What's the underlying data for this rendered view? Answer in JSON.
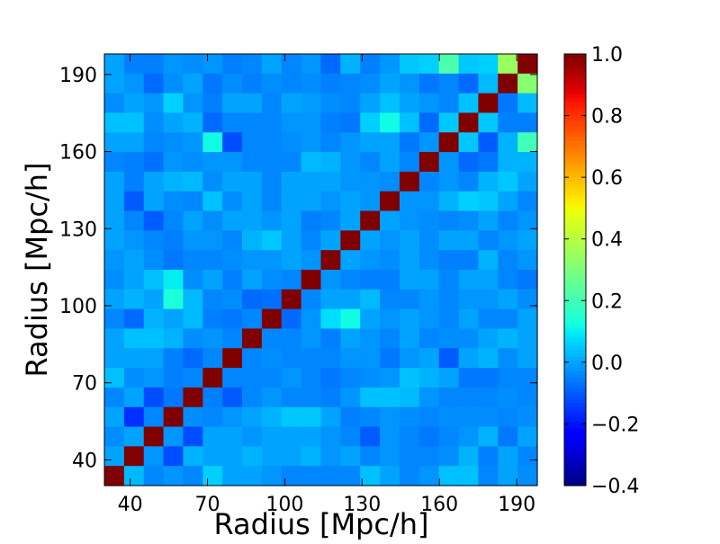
{
  "chart_data": {
    "type": "heatmap",
    "title": "",
    "xlabel": "Radius [Mpc/h]",
    "ylabel": "Radius [Mpc/h]",
    "axis_min": 30,
    "axis_max": 198,
    "bin_width": 8,
    "x_ticks": [
      40,
      70,
      100,
      130,
      160,
      190
    ],
    "y_ticks": [
      40,
      70,
      100,
      130,
      160,
      190
    ],
    "x_tick_labels": [
      "40",
      "70",
      "100",
      "130",
      "160",
      "190"
    ],
    "y_tick_labels": [
      "40",
      "70",
      "100",
      "130",
      "160",
      "190"
    ],
    "colorbar": {
      "min": -0.4,
      "max": 1.0,
      "ticks": [
        1.0,
        0.8,
        0.6,
        0.4,
        0.2,
        0.0,
        -0.2,
        -0.4
      ],
      "tick_labels": [
        "1.0",
        "0.8",
        "0.6",
        "0.4",
        "0.2",
        "0.0",
        "−0.2",
        "−0.4"
      ],
      "colormap": "jet"
    },
    "matrix_order": "rows listed from top (r=194) to bottom (r=34); columns from left (r=34) to right (r=194)",
    "matrix": [
      [
        0.0,
        -0.05,
        -0.05,
        -0.02,
        -0.03,
        -0.02,
        -0.05,
        -0.04,
        0.0,
        -0.04,
        -0.02,
        -0.08,
        0.02,
        -0.05,
        -0.02,
        0.05,
        0.06,
        0.22,
        0.05,
        0.06,
        0.35,
        1.0
      ],
      [
        0.0,
        -0.02,
        -0.08,
        -0.03,
        0.0,
        -0.06,
        -0.03,
        -0.05,
        -0.03,
        -0.04,
        -0.03,
        -0.05,
        -0.04,
        -0.03,
        0.0,
        -0.02,
        -0.06,
        -0.04,
        -0.08,
        0.03,
        1.0,
        0.32
      ],
      [
        -0.03,
        0.0,
        -0.02,
        0.06,
        -0.02,
        -0.05,
        0.0,
        0.0,
        -0.04,
        0.0,
        -0.01,
        -0.03,
        -0.04,
        0.0,
        0.04,
        0.0,
        -0.02,
        -0.04,
        0.04,
        1.0,
        -0.06,
        0.03
      ],
      [
        0.04,
        0.04,
        -0.03,
        0.0,
        0.02,
        -0.08,
        -0.04,
        -0.04,
        -0.04,
        -0.02,
        -0.02,
        -0.05,
        -0.06,
        0.06,
        0.12,
        0.04,
        -0.08,
        0.05,
        1.0,
        0.05,
        -0.05,
        -0.05
      ],
      [
        0.0,
        0.0,
        -0.04,
        -0.03,
        -0.02,
        0.12,
        -0.12,
        -0.04,
        -0.04,
        -0.03,
        -0.02,
        -0.04,
        -0.02,
        0.0,
        0.0,
        -0.06,
        -0.02,
        1.0,
        0.05,
        -0.1,
        0.02,
        0.2
      ],
      [
        -0.04,
        -0.05,
        -0.07,
        -0.02,
        -0.03,
        -0.02,
        -0.02,
        -0.04,
        -0.04,
        -0.04,
        0.03,
        0.02,
        -0.02,
        -0.04,
        0.0,
        -0.04,
        1.0,
        -0.02,
        -0.08,
        -0.06,
        0.02,
        0.02
      ],
      [
        0.0,
        -0.05,
        0.0,
        0.02,
        0.03,
        -0.03,
        0.0,
        0.0,
        -0.04,
        0.0,
        0.0,
        0.0,
        -0.02,
        -0.02,
        -0.03,
        1.0,
        -0.04,
        -0.02,
        -0.04,
        0.02,
        0.05,
        0.0
      ],
      [
        0.0,
        -0.1,
        0.0,
        -0.03,
        -0.04,
        0.04,
        -0.03,
        0.0,
        -0.04,
        0.0,
        0.0,
        -0.02,
        0.0,
        -0.02,
        1.0,
        -0.02,
        -0.02,
        0.02,
        0.06,
        0.05,
        0.0,
        -0.04
      ],
      [
        0.0,
        -0.04,
        -0.1,
        -0.04,
        0.0,
        -0.03,
        0.0,
        0.0,
        -0.02,
        0.0,
        -0.05,
        -0.04,
        0.0,
        1.0,
        0.0,
        -0.02,
        -0.03,
        -0.04,
        -0.03,
        0.0,
        -0.04,
        -0.02
      ],
      [
        0.0,
        -0.02,
        -0.04,
        -0.05,
        -0.02,
        -0.02,
        -0.04,
        0.02,
        0.05,
        0.0,
        -0.04,
        0.0,
        1.0,
        0.0,
        -0.02,
        0.0,
        -0.03,
        0.0,
        0.0,
        -0.04,
        -0.02,
        0.0
      ],
      [
        -0.02,
        0.0,
        -0.03,
        -0.06,
        -0.04,
        -0.04,
        -0.03,
        -0.02,
        -0.02,
        0.0,
        -0.02,
        1.0,
        0.0,
        -0.02,
        -0.03,
        0.0,
        -0.03,
        -0.05,
        -0.05,
        0.02,
        -0.04,
        -0.02
      ],
      [
        -0.03,
        0.0,
        0.04,
        0.1,
        -0.03,
        0.0,
        -0.05,
        0.0,
        -0.03,
        -0.04,
        1.0,
        -0.02,
        -0.04,
        -0.05,
        -0.05,
        0.0,
        0.0,
        -0.04,
        0.0,
        0.0,
        -0.04,
        -0.06
      ],
      [
        0.0,
        0.02,
        0.0,
        0.14,
        0.03,
        -0.04,
        -0.03,
        -0.08,
        -0.07,
        1.0,
        -0.04,
        0.0,
        0.0,
        0.03,
        -0.04,
        -0.04,
        -0.02,
        -0.04,
        -0.02,
        -0.02,
        0.0,
        -0.03
      ],
      [
        -0.04,
        -0.08,
        0.02,
        0.0,
        0.03,
        -0.05,
        -0.06,
        -0.04,
        1.0,
        -0.08,
        -0.02,
        0.08,
        0.12,
        0.0,
        -0.02,
        0.0,
        -0.02,
        -0.04,
        0.0,
        -0.04,
        -0.04,
        0.0
      ],
      [
        0.0,
        0.04,
        0.04,
        0.02,
        -0.03,
        -0.02,
        -0.04,
        1.0,
        -0.04,
        -0.04,
        -0.02,
        -0.05,
        0.0,
        -0.02,
        -0.04,
        0.0,
        -0.04,
        -0.03,
        -0.03,
        0.0,
        0.02,
        0.0
      ],
      [
        0.0,
        0.0,
        0.0,
        -0.05,
        -0.08,
        -0.04,
        1.0,
        -0.04,
        -0.03,
        -0.04,
        -0.04,
        -0.04,
        -0.02,
        -0.02,
        -0.06,
        -0.02,
        0.0,
        -0.1,
        0.0,
        0.02,
        -0.03,
        0.0
      ],
      [
        0.04,
        -0.03,
        -0.02,
        -0.05,
        -0.04,
        1.0,
        -0.04,
        -0.04,
        -0.04,
        -0.02,
        -0.04,
        -0.06,
        -0.04,
        -0.03,
        -0.02,
        0.04,
        0.02,
        0.0,
        -0.06,
        -0.06,
        -0.04,
        -0.04
      ],
      [
        -0.04,
        0.0,
        -0.12,
        -0.06,
        1.0,
        -0.05,
        -0.1,
        -0.04,
        -0.02,
        -0.04,
        -0.04,
        -0.05,
        -0.02,
        0.04,
        0.04,
        0.03,
        -0.02,
        -0.04,
        -0.04,
        -0.04,
        -0.03,
        -0.04
      ],
      [
        0.0,
        -0.16,
        -0.04,
        1.0,
        -0.03,
        -0.04,
        -0.02,
        0.0,
        0.02,
        0.05,
        0.05,
        0.0,
        -0.05,
        -0.04,
        -0.02,
        -0.03,
        -0.04,
        -0.03,
        -0.03,
        -0.03,
        -0.04,
        -0.03
      ],
      [
        -0.03,
        0.0,
        1.0,
        -0.02,
        -0.12,
        0.0,
        0.0,
        -0.02,
        0.0,
        0.0,
        0.0,
        -0.02,
        -0.04,
        -0.1,
        -0.02,
        -0.04,
        -0.06,
        -0.04,
        -0.02,
        0.02,
        -0.06,
        0.0
      ],
      [
        0.0,
        1.0,
        -0.02,
        -0.12,
        0.02,
        0.0,
        0.0,
        0.02,
        0.0,
        0.0,
        0.02,
        -0.02,
        0.0,
        -0.04,
        -0.02,
        -0.04,
        -0.04,
        -0.03,
        0.02,
        -0.05,
        0.0,
        -0.04
      ],
      [
        1.0,
        0.03,
        -0.04,
        -0.02,
        -0.04,
        0.06,
        0.0,
        0.0,
        -0.02,
        -0.04,
        -0.04,
        -0.04,
        -0.04,
        0.04,
        0.0,
        -0.04,
        -0.02,
        0.04,
        0.04,
        -0.04,
        0.0,
        -0.03
      ]
    ]
  }
}
